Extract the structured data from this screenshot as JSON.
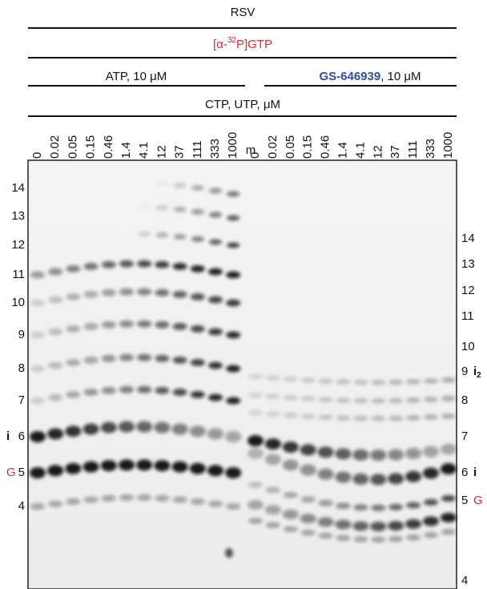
{
  "header": {
    "title": "RSV",
    "substrate": {
      "prefix": "[α-",
      "sup": "32",
      "suffix": "P]GTP"
    },
    "left_group": "ATP, 10 μM",
    "right_group": {
      "compound": "GS-646939",
      "rest": ", 10 μM"
    },
    "titration": "CTP, UTP, μM"
  },
  "lanes": {
    "left": [
      "0",
      "0.02",
      "0.05",
      "0.15",
      "0.46",
      "1.4",
      "4.1",
      "12",
      "37",
      "111",
      "333",
      "1000"
    ],
    "marker": "m",
    "right": [
      "0",
      "0.02",
      "0.05",
      "0.15",
      "0.46",
      "1.4",
      "4.1",
      "12",
      "37",
      "111",
      "333",
      "1000"
    ]
  },
  "left_markers": [
    {
      "label": "14"
    },
    {
      "label": "13"
    },
    {
      "label": "12"
    },
    {
      "label": "11"
    },
    {
      "label": "10"
    },
    {
      "label": "9"
    },
    {
      "label": "8"
    },
    {
      "label": "7"
    },
    {
      "label": "6",
      "tag": "i"
    },
    {
      "label": "5",
      "tag": "G"
    },
    {
      "label": "4"
    }
  ],
  "right_markers": [
    {
      "label": "14"
    },
    {
      "label": "13"
    },
    {
      "label": "12"
    },
    {
      "label": "11"
    },
    {
      "label": "10"
    },
    {
      "label": "9",
      "tag": "i",
      "tag_sub": "2"
    },
    {
      "label": "8"
    },
    {
      "label": "7"
    },
    {
      "label": "6",
      "tag": "i"
    },
    {
      "label": "5",
      "tag": "G"
    },
    {
      "label": "4"
    }
  ]
}
